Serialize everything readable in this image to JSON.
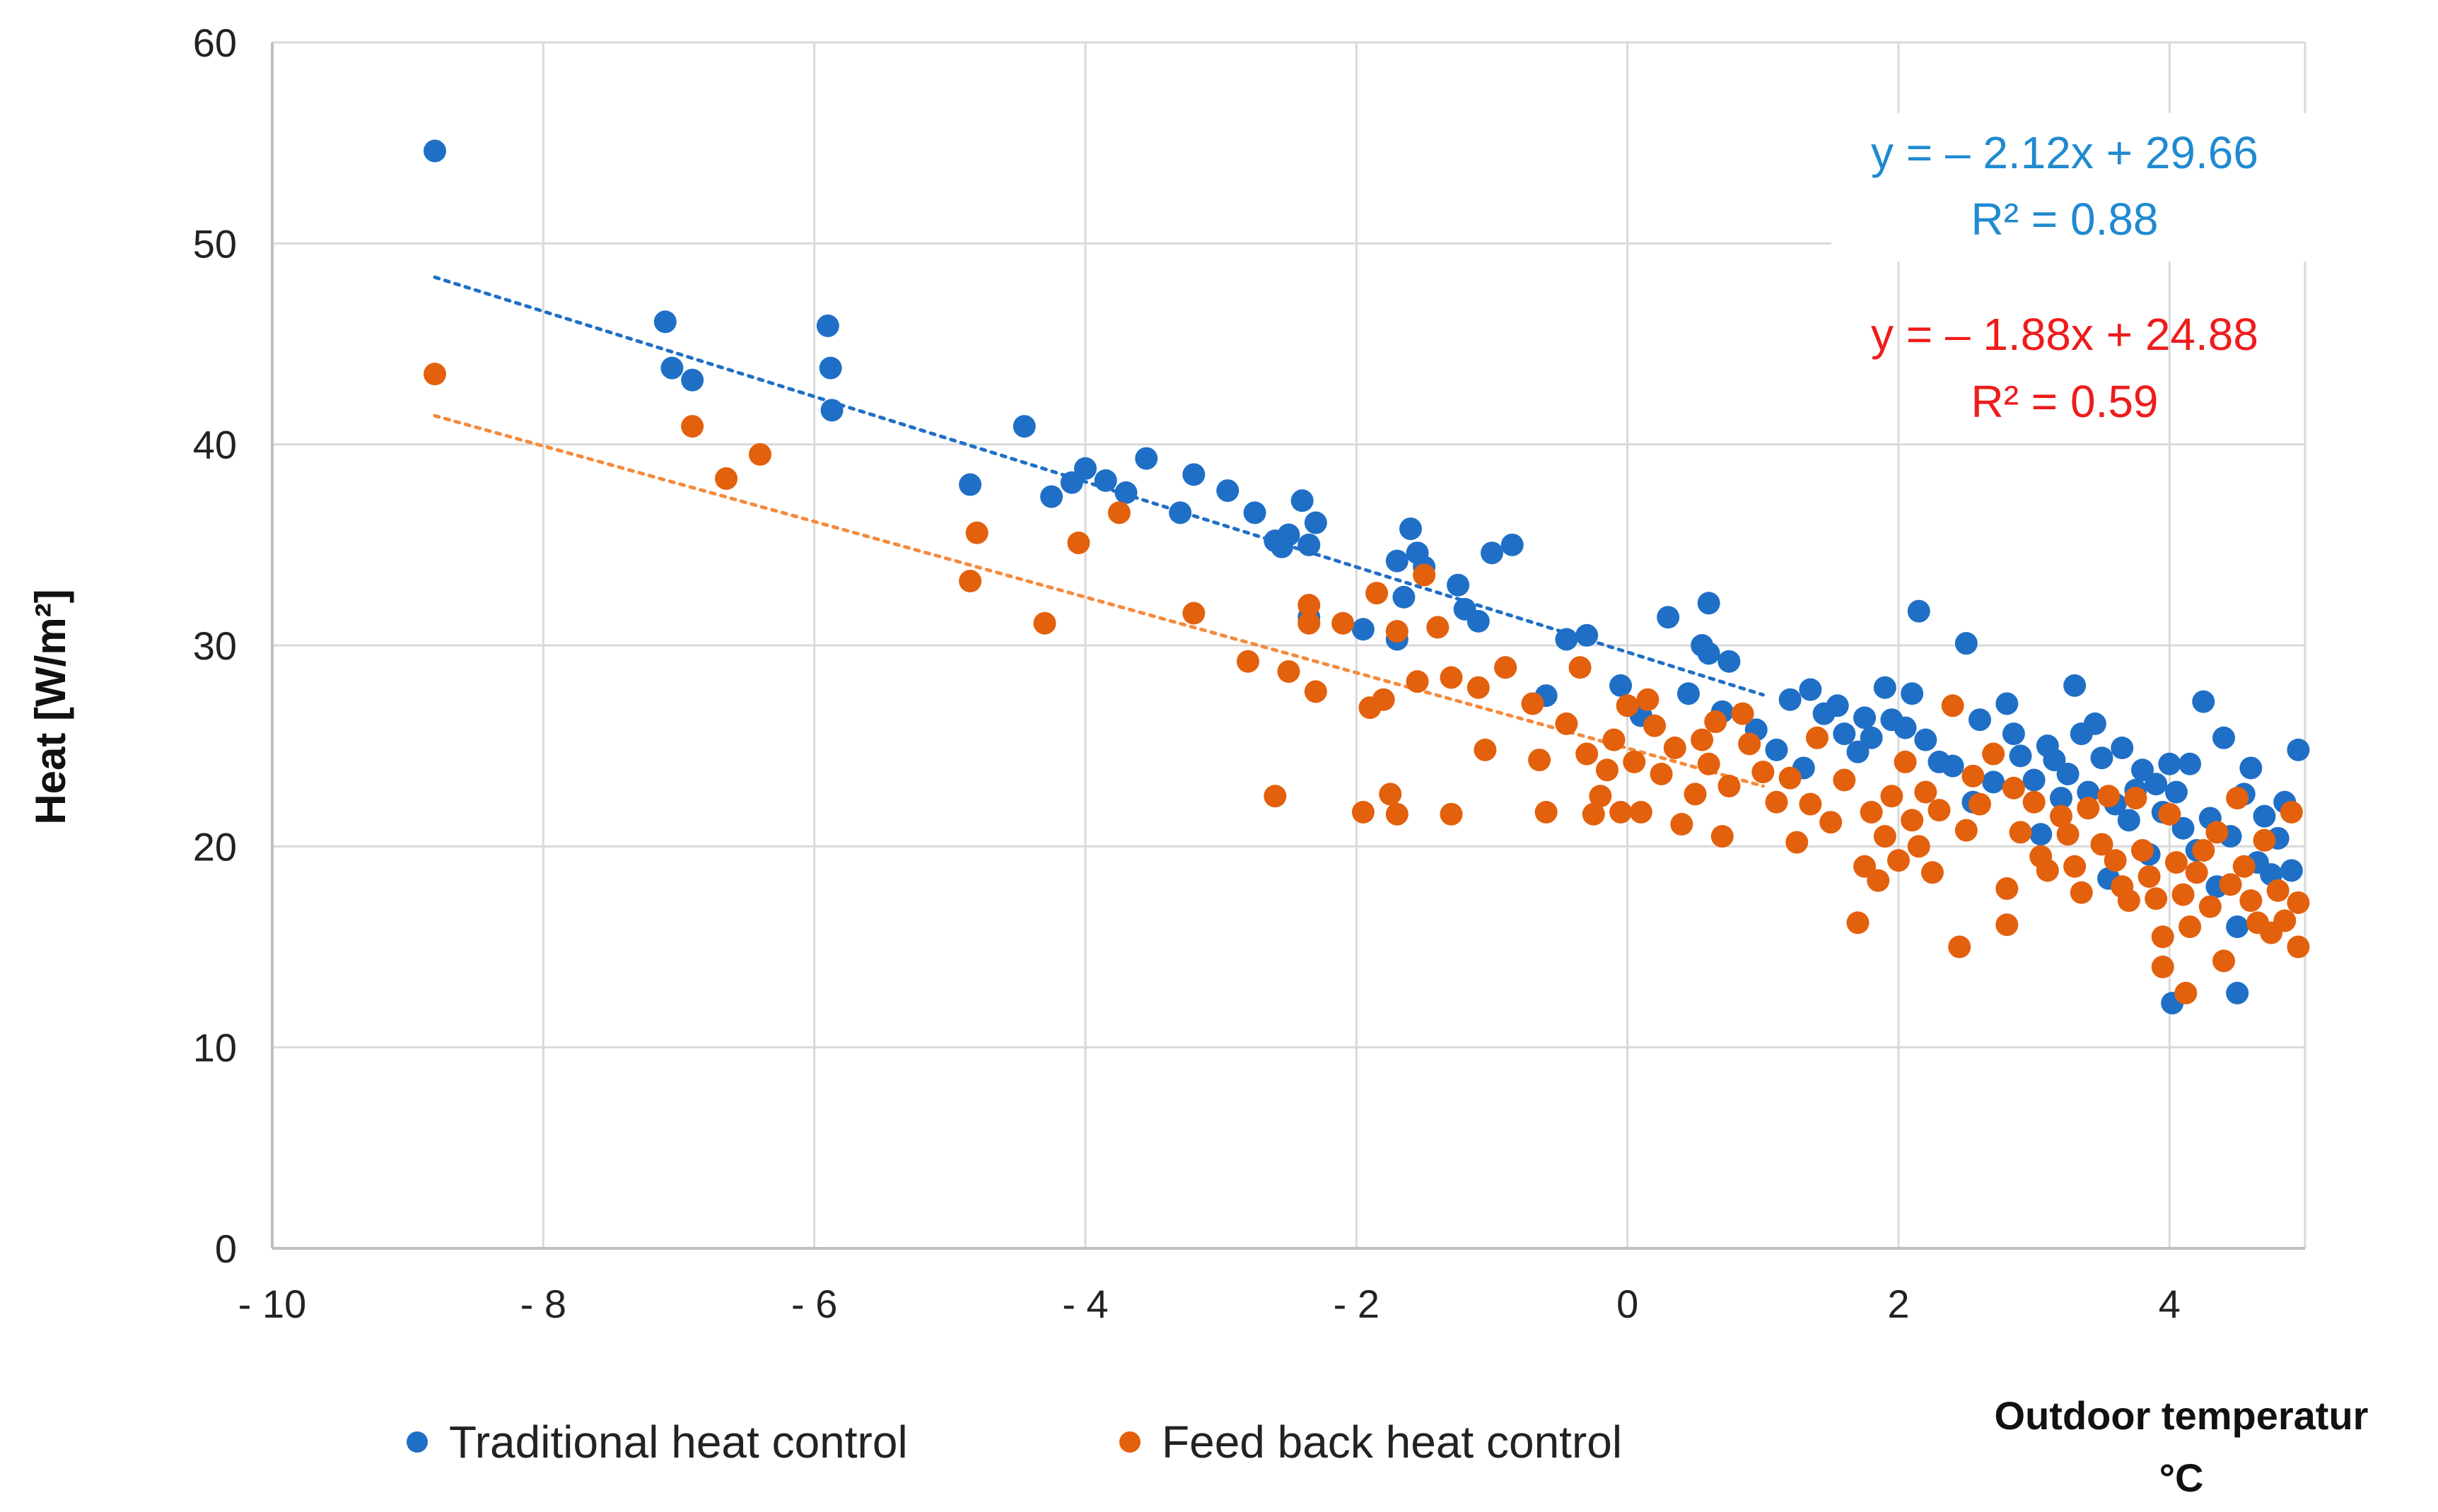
{
  "chart_data": {
    "type": "scatter",
    "title": "",
    "xlabel_line1": "Outdoor temperatur",
    "xlabel_line2": "°C",
    "ylabel": "Heat [W/m²]",
    "xlim": [
      -10,
      5
    ],
    "ylim": [
      0,
      60
    ],
    "x_ticks": [
      -10,
      -8,
      -6,
      -4,
      -2,
      0,
      2,
      4
    ],
    "x_tick_labels": [
      "- 10",
      "- 8",
      "- 6",
      "- 4",
      "- 2",
      "0",
      "2",
      "4"
    ],
    "y_ticks": [
      0,
      10,
      20,
      30,
      40,
      50,
      60
    ],
    "y_tick_labels": [
      "0",
      "10",
      "20",
      "30",
      "40",
      "50",
      "60"
    ],
    "grid": true,
    "legend_position": "bottom",
    "series": [
      {
        "name": "Traditional heat control",
        "color": "#1f6fc6",
        "trend_color": "#1f6fc6",
        "trendline": {
          "slope": -2.12,
          "intercept": 29.66,
          "x_range": [
            -8.8,
            1.0
          ]
        },
        "equation": "y = – 2.12x + 29.66",
        "r2": "R² = 0.88",
        "points": [
          [
            -8.8,
            54.6
          ],
          [
            -7.1,
            46.1
          ],
          [
            -7.05,
            43.8
          ],
          [
            -6.9,
            43.2
          ],
          [
            -5.9,
            45.9
          ],
          [
            -5.88,
            43.8
          ],
          [
            -5.87,
            41.7
          ],
          [
            -4.85,
            38.0
          ],
          [
            -4.45,
            40.9
          ],
          [
            -4.25,
            37.4
          ],
          [
            -4.1,
            38.1
          ],
          [
            -4.0,
            38.8
          ],
          [
            -3.85,
            38.2
          ],
          [
            -3.7,
            37.6
          ],
          [
            -3.55,
            39.3
          ],
          [
            -3.3,
            36.6
          ],
          [
            -3.2,
            38.5
          ],
          [
            -2.95,
            37.7
          ],
          [
            -2.75,
            36.6
          ],
          [
            -2.6,
            35.2
          ],
          [
            -2.55,
            34.9
          ],
          [
            -2.5,
            35.5
          ],
          [
            -2.4,
            37.2
          ],
          [
            -2.35,
            35.0
          ],
          [
            -2.3,
            36.1
          ],
          [
            -2.35,
            31.4
          ],
          [
            -1.95,
            30.8
          ],
          [
            -1.7,
            34.2
          ],
          [
            -1.6,
            35.8
          ],
          [
            -1.65,
            32.4
          ],
          [
            -1.55,
            34.6
          ],
          [
            -1.5,
            33.9
          ],
          [
            -1.7,
            30.3
          ],
          [
            -1.25,
            33.0
          ],
          [
            -1.2,
            31.8
          ],
          [
            -1.1,
            31.2
          ],
          [
            -1.0,
            34.6
          ],
          [
            -0.85,
            35.0
          ],
          [
            -0.9,
            28.9
          ],
          [
            -0.6,
            27.5
          ],
          [
            -0.45,
            30.3
          ],
          [
            -0.3,
            30.5
          ],
          [
            -0.05,
            28.0
          ],
          [
            0.1,
            26.5
          ],
          [
            0.3,
            31.4
          ],
          [
            0.45,
            27.6
          ],
          [
            0.55,
            30.0
          ],
          [
            0.6,
            29.6
          ],
          [
            0.6,
            32.1
          ],
          [
            0.7,
            26.7
          ],
          [
            0.75,
            29.2
          ],
          [
            0.95,
            25.8
          ],
          [
            1.1,
            24.8
          ],
          [
            1.2,
            27.3
          ],
          [
            1.3,
            23.9
          ],
          [
            1.35,
            27.8
          ],
          [
            1.45,
            26.6
          ],
          [
            1.55,
            27.0
          ],
          [
            1.6,
            25.6
          ],
          [
            1.7,
            24.7
          ],
          [
            1.75,
            26.4
          ],
          [
            1.8,
            25.4
          ],
          [
            1.9,
            27.9
          ],
          [
            1.95,
            26.3
          ],
          [
            2.05,
            25.9
          ],
          [
            2.1,
            27.6
          ],
          [
            2.15,
            31.7
          ],
          [
            2.2,
            25.3
          ],
          [
            2.3,
            24.2
          ],
          [
            2.4,
            24.0
          ],
          [
            2.5,
            30.1
          ],
          [
            2.55,
            22.2
          ],
          [
            2.6,
            26.3
          ],
          [
            2.7,
            23.2
          ],
          [
            2.8,
            27.1
          ],
          [
            2.85,
            25.6
          ],
          [
            2.9,
            24.5
          ],
          [
            3.0,
            23.3
          ],
          [
            3.05,
            20.6
          ],
          [
            3.1,
            25.0
          ],
          [
            3.15,
            24.3
          ],
          [
            3.2,
            22.4
          ],
          [
            3.25,
            23.6
          ],
          [
            3.3,
            28.0
          ],
          [
            3.35,
            25.6
          ],
          [
            3.4,
            22.7
          ],
          [
            3.45,
            26.1
          ],
          [
            3.5,
            24.4
          ],
          [
            3.55,
            18.4
          ],
          [
            3.6,
            22.1
          ],
          [
            3.65,
            24.9
          ],
          [
            3.7,
            21.3
          ],
          [
            3.75,
            22.8
          ],
          [
            3.8,
            23.8
          ],
          [
            3.85,
            19.6
          ],
          [
            3.9,
            23.1
          ],
          [
            3.95,
            21.7
          ],
          [
            4.0,
            24.1
          ],
          [
            4.02,
            12.2
          ],
          [
            4.05,
            22.7
          ],
          [
            4.1,
            20.9
          ],
          [
            4.15,
            24.1
          ],
          [
            4.2,
            19.8
          ],
          [
            4.25,
            27.2
          ],
          [
            4.3,
            21.4
          ],
          [
            4.35,
            18.0
          ],
          [
            4.4,
            25.4
          ],
          [
            4.45,
            20.5
          ],
          [
            4.5,
            12.7
          ],
          [
            4.5,
            16.0
          ],
          [
            4.55,
            22.6
          ],
          [
            4.6,
            23.9
          ],
          [
            4.65,
            19.2
          ],
          [
            4.7,
            21.5
          ],
          [
            4.75,
            18.6
          ],
          [
            4.8,
            20.4
          ],
          [
            4.85,
            22.2
          ],
          [
            4.9,
            18.8
          ],
          [
            4.95,
            24.8
          ]
        ]
      },
      {
        "name": "Feed back heat control",
        "color": "#e3600d",
        "trend_color": "#f58a3c",
        "trendline": {
          "slope": -1.88,
          "intercept": 24.88,
          "x_range": [
            -8.8,
            1.0
          ]
        },
        "equation": "y = – 1.88x + 24.88",
        "r2": "R² = 0.59",
        "points": [
          [
            -8.8,
            43.5
          ],
          [
            -6.9,
            40.9
          ],
          [
            -6.65,
            38.3
          ],
          [
            -6.4,
            39.5
          ],
          [
            -4.85,
            33.2
          ],
          [
            -4.8,
            35.6
          ],
          [
            -4.3,
            31.1
          ],
          [
            -4.05,
            35.1
          ],
          [
            -3.75,
            36.6
          ],
          [
            -3.2,
            31.6
          ],
          [
            -2.8,
            29.2
          ],
          [
            -2.6,
            22.5
          ],
          [
            -2.5,
            28.7
          ],
          [
            -2.35,
            32.0
          ],
          [
            -2.3,
            27.7
          ],
          [
            -2.35,
            31.1
          ],
          [
            -2.1,
            31.1
          ],
          [
            -1.95,
            21.7
          ],
          [
            -1.9,
            26.9
          ],
          [
            -1.85,
            32.6
          ],
          [
            -1.8,
            27.3
          ],
          [
            -1.75,
            22.6
          ],
          [
            -1.7,
            21.6
          ],
          [
            -1.7,
            30.7
          ],
          [
            -1.55,
            28.2
          ],
          [
            -1.5,
            33.5
          ],
          [
            -1.4,
            30.9
          ],
          [
            -1.3,
            21.6
          ],
          [
            -1.3,
            28.4
          ],
          [
            -1.05,
            24.8
          ],
          [
            -1.1,
            27.9
          ],
          [
            -0.9,
            28.9
          ],
          [
            -0.7,
            27.1
          ],
          [
            -0.6,
            21.7
          ],
          [
            -0.65,
            24.3
          ],
          [
            -0.45,
            26.1
          ],
          [
            -0.35,
            28.9
          ],
          [
            -0.3,
            24.6
          ],
          [
            -0.25,
            21.6
          ],
          [
            -0.2,
            22.5
          ],
          [
            -0.15,
            23.8
          ],
          [
            -0.1,
            25.3
          ],
          [
            -0.05,
            21.7
          ],
          [
            0.0,
            27.0
          ],
          [
            0.05,
            24.2
          ],
          [
            0.1,
            21.7
          ],
          [
            0.15,
            27.3
          ],
          [
            0.2,
            26.0
          ],
          [
            0.25,
            23.6
          ],
          [
            0.35,
            24.9
          ],
          [
            0.4,
            21.1
          ],
          [
            0.5,
            22.6
          ],
          [
            0.55,
            25.3
          ],
          [
            0.6,
            24.1
          ],
          [
            0.65,
            26.2
          ],
          [
            0.7,
            20.5
          ],
          [
            0.75,
            23.0
          ],
          [
            0.85,
            26.6
          ],
          [
            0.9,
            25.1
          ],
          [
            1.0,
            23.7
          ],
          [
            1.1,
            22.2
          ],
          [
            1.2,
            23.4
          ],
          [
            1.25,
            20.2
          ],
          [
            1.35,
            22.1
          ],
          [
            1.4,
            25.4
          ],
          [
            1.5,
            21.2
          ],
          [
            1.6,
            23.3
          ],
          [
            1.7,
            16.2
          ],
          [
            1.75,
            19.0
          ],
          [
            1.8,
            21.7
          ],
          [
            1.85,
            18.3
          ],
          [
            1.9,
            20.5
          ],
          [
            1.95,
            22.5
          ],
          [
            2.0,
            19.3
          ],
          [
            2.05,
            24.2
          ],
          [
            2.1,
            21.3
          ],
          [
            2.15,
            20.0
          ],
          [
            2.2,
            22.7
          ],
          [
            2.25,
            18.7
          ],
          [
            2.3,
            21.8
          ],
          [
            2.4,
            27.0
          ],
          [
            2.45,
            15.0
          ],
          [
            2.5,
            20.8
          ],
          [
            2.55,
            23.5
          ],
          [
            2.6,
            22.1
          ],
          [
            2.7,
            24.6
          ],
          [
            2.8,
            17.9
          ],
          [
            2.8,
            16.1
          ],
          [
            2.85,
            22.9
          ],
          [
            2.9,
            20.7
          ],
          [
            3.0,
            22.2
          ],
          [
            3.05,
            19.5
          ],
          [
            3.1,
            18.8
          ],
          [
            3.2,
            21.5
          ],
          [
            3.25,
            20.6
          ],
          [
            3.3,
            19.0
          ],
          [
            3.35,
            17.7
          ],
          [
            3.4,
            21.9
          ],
          [
            3.5,
            20.1
          ],
          [
            3.55,
            22.5
          ],
          [
            3.6,
            19.3
          ],
          [
            3.65,
            18.0
          ],
          [
            3.7,
            17.3
          ],
          [
            3.75,
            22.4
          ],
          [
            3.8,
            19.8
          ],
          [
            3.85,
            18.5
          ],
          [
            3.9,
            17.4
          ],
          [
            3.95,
            14.0
          ],
          [
            3.95,
            15.5
          ],
          [
            4.0,
            21.6
          ],
          [
            4.05,
            19.2
          ],
          [
            4.1,
            17.6
          ],
          [
            4.12,
            12.7
          ],
          [
            4.15,
            16.0
          ],
          [
            4.2,
            18.7
          ],
          [
            4.25,
            19.8
          ],
          [
            4.3,
            17.0
          ],
          [
            4.35,
            20.7
          ],
          [
            4.4,
            14.3
          ],
          [
            4.45,
            18.1
          ],
          [
            4.5,
            22.4
          ],
          [
            4.55,
            19.0
          ],
          [
            4.6,
            17.3
          ],
          [
            4.65,
            16.2
          ],
          [
            4.7,
            20.3
          ],
          [
            4.75,
            15.7
          ],
          [
            4.8,
            17.8
          ],
          [
            4.85,
            16.3
          ],
          [
            4.9,
            21.7
          ],
          [
            4.95,
            15.0
          ],
          [
            4.95,
            17.2
          ]
        ]
      }
    ]
  }
}
